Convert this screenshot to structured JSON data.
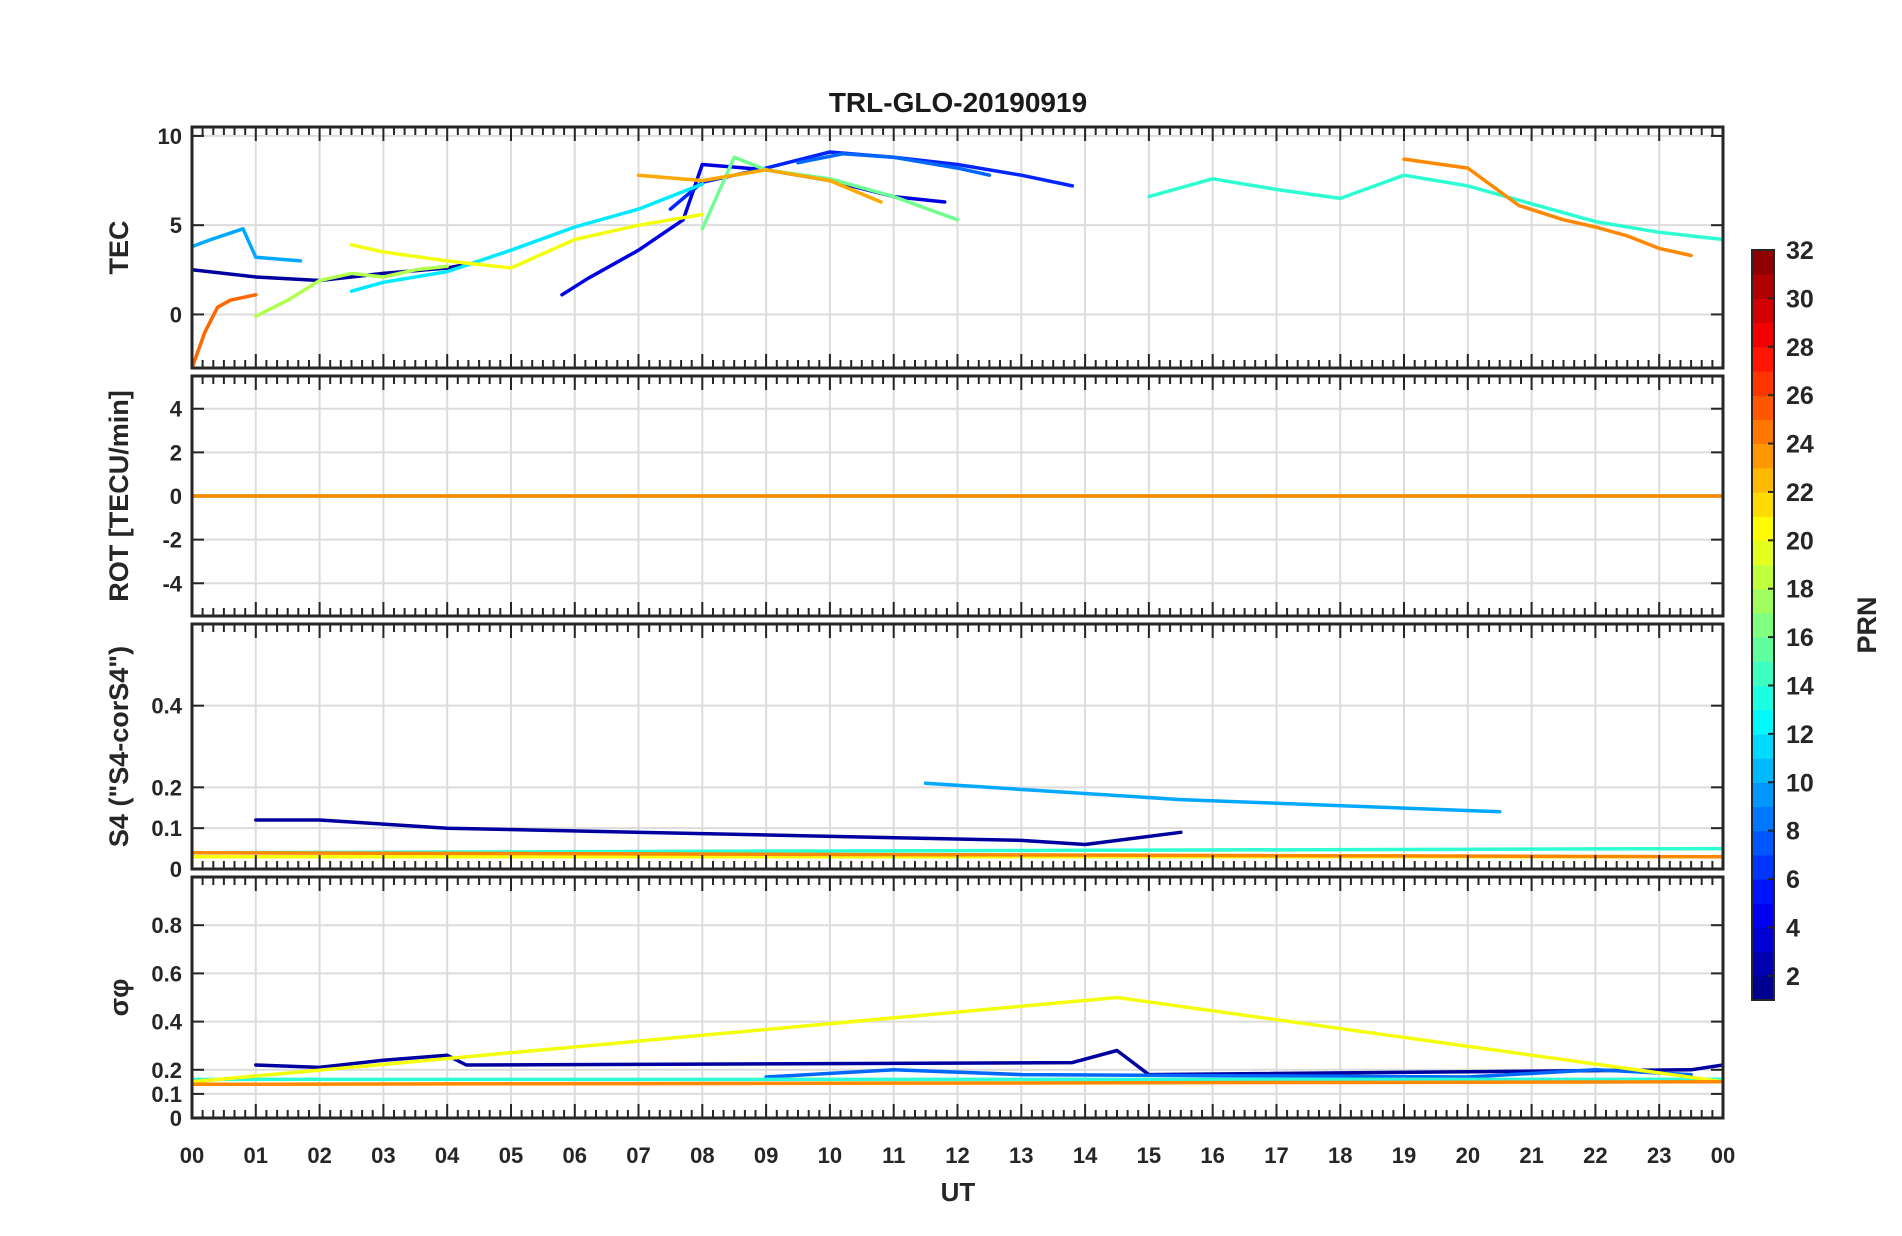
{
  "chart_data": {
    "type": "line",
    "title": "TRL-GLO-20190919",
    "xlabel": "UT",
    "x_ticks": [
      "00",
      "01",
      "02",
      "03",
      "04",
      "05",
      "06",
      "07",
      "08",
      "09",
      "10",
      "11",
      "12",
      "13",
      "14",
      "15",
      "16",
      "17",
      "18",
      "19",
      "20",
      "21",
      "22",
      "23",
      "00"
    ],
    "xlim": [
      0,
      24
    ],
    "grid": true,
    "panels": [
      {
        "ylabel": "TEC",
        "ylim": [
          -3,
          10.5
        ],
        "yticks": [
          0,
          5,
          10
        ],
        "ytick_labels": [
          "0",
          "5",
          "10"
        ],
        "series": [
          {
            "prn": 2,
            "x": [
              0.0,
              1.0,
              2.0,
              3.0,
              4.0,
              4.3
            ],
            "y": [
              2.5,
              2.1,
              1.9,
              2.3,
              2.6,
              2.8
            ]
          },
          {
            "prn": 4,
            "x": [
              5.8,
              6.2,
              7.0,
              7.7,
              8.0,
              9.0,
              10.0,
              11.0,
              11.8
            ],
            "y": [
              1.1,
              2.0,
              3.6,
              5.3,
              8.4,
              8.1,
              7.5,
              6.6,
              6.3
            ]
          },
          {
            "prn": 6,
            "x": [
              7.5,
              8.0,
              9.0,
              10.0,
              11.0,
              12.0,
              13.0,
              13.8
            ],
            "y": [
              5.9,
              7.4,
              8.2,
              9.1,
              8.8,
              8.4,
              7.8,
              7.2
            ]
          },
          {
            "prn": 8,
            "x": [
              9.5,
              10.2,
              11.0,
              12.0,
              12.5
            ],
            "y": [
              8.5,
              9.0,
              8.8,
              8.2,
              7.8
            ]
          },
          {
            "prn": 10,
            "x": [
              0.0,
              0.3,
              0.8,
              1.0,
              1.7
            ],
            "y": [
              3.8,
              4.2,
              4.8,
              3.2,
              3.0
            ]
          },
          {
            "prn": 12,
            "x": [
              2.5,
              3.0,
              4.0,
              5.0,
              6.0,
              7.0,
              8.0
            ],
            "y": [
              1.3,
              1.8,
              2.4,
              3.6,
              4.9,
              5.9,
              7.3
            ]
          },
          {
            "prn": 14,
            "x": [
              15.0,
              16.0,
              17.0,
              18.0,
              19.0,
              20.0,
              21.0,
              22.0,
              23.0,
              24.0
            ],
            "y": [
              6.6,
              7.6,
              7.0,
              6.5,
              7.8,
              7.2,
              6.2,
              5.2,
              4.6,
              4.2
            ]
          },
          {
            "prn": 16,
            "x": [
              8.0,
              8.5,
              9.0,
              10.0,
              11.0,
              12.0
            ],
            "y": [
              4.8,
              8.8,
              8.1,
              7.6,
              6.6,
              5.3
            ]
          },
          {
            "prn": 18,
            "x": [
              1.0,
              1.5,
              2.0,
              2.5,
              3.0,
              3.5,
              4.0
            ],
            "y": [
              -0.1,
              0.8,
              1.9,
              2.3,
              2.1,
              2.5,
              2.7
            ]
          },
          {
            "prn": 20,
            "x": [
              2.5,
              3.0,
              4.0,
              5.0,
              6.0,
              7.0,
              8.0
            ],
            "y": [
              3.9,
              3.5,
              3.0,
              2.6,
              4.2,
              5.0,
              5.6
            ]
          },
          {
            "prn": 23,
            "x": [
              7.0,
              8.0,
              9.0,
              10.0,
              10.8
            ],
            "y": [
              7.8,
              7.5,
              8.1,
              7.5,
              6.3
            ]
          },
          {
            "prn": 24,
            "x": [
              19.0,
              20.0,
              20.8,
              21.5,
              22.0,
              22.5,
              23.0,
              23.5
            ],
            "y": [
              8.7,
              8.2,
              6.1,
              5.3,
              4.9,
              4.4,
              3.7,
              3.3
            ]
          },
          {
            "prn": 25,
            "x": [
              0.0,
              0.2,
              0.4,
              0.6,
              1.0
            ],
            "y": [
              -3.0,
              -1.0,
              0.4,
              0.8,
              1.1
            ]
          }
        ]
      },
      {
        "ylabel": "ROT [TECU/min]",
        "ylim": [
          -5.5,
          5.5
        ],
        "yticks": [
          -4,
          -2,
          0,
          2,
          4
        ],
        "ytick_labels": [
          "-4",
          "-2",
          "0",
          "2",
          "4"
        ],
        "series": [
          {
            "prn": 4,
            "x": [
              0,
              24
            ],
            "y": [
              0,
              0
            ]
          },
          {
            "prn": 14,
            "x": [
              0,
              24
            ],
            "y": [
              0,
              0
            ]
          },
          {
            "prn": 20,
            "x": [
              0,
              24
            ],
            "y": [
              0,
              0
            ]
          },
          {
            "prn": 24,
            "x": [
              0,
              24
            ],
            "y": [
              0,
              0
            ]
          }
        ]
      },
      {
        "ylabel": "S4 (\"S4-corS4\")",
        "ylim": [
          0,
          0.6
        ],
        "yticks": [
          0,
          0.1,
          0.2,
          0.4
        ],
        "ytick_labels": [
          "0",
          "0.1",
          "0.2",
          "0.4"
        ],
        "series": [
          {
            "prn": 2,
            "x": [
              1.0,
              2.0,
              3.0,
              4.0,
              13.0,
              14.0,
              15.5
            ],
            "y": [
              0.12,
              0.12,
              0.11,
              0.1,
              0.07,
              0.06,
              0.09
            ]
          },
          {
            "prn": 10,
            "x": [
              11.5,
              15.5,
              20.5
            ],
            "y": [
              0.21,
              0.17,
              0.14
            ]
          },
          {
            "prn": 14,
            "x": [
              0,
              24
            ],
            "y": [
              0.04,
              0.05
            ]
          },
          {
            "prn": 20,
            "x": [
              0,
              24
            ],
            "y": [
              0.03,
              0.03
            ]
          },
          {
            "prn": 24,
            "x": [
              0,
              24
            ],
            "y": [
              0.04,
              0.03
            ]
          }
        ]
      },
      {
        "ylabel": "σφ",
        "ylim": [
          0,
          1
        ],
        "yticks": [
          0,
          0.1,
          0.2,
          0.4,
          0.6,
          0.8
        ],
        "ytick_labels": [
          "0",
          "0.1",
          "0.2",
          "0.4",
          "0.6",
          "0.8"
        ],
        "series": [
          {
            "prn": 2,
            "x": [
              1.0,
              2.0,
              3.0,
              4.0,
              4.3,
              13.8,
              14.5,
              15.0,
              23.5,
              24.0
            ],
            "y": [
              0.22,
              0.21,
              0.24,
              0.26,
              0.22,
              0.23,
              0.28,
              0.18,
              0.2,
              0.22
            ]
          },
          {
            "prn": 8,
            "x": [
              9.0,
              11.0,
              13.0,
              20.0,
              22.0,
              23.5
            ],
            "y": [
              0.17,
              0.2,
              0.18,
              0.17,
              0.2,
              0.18
            ]
          },
          {
            "prn": 14,
            "x": [
              0,
              24
            ],
            "y": [
              0.16,
              0.16
            ]
          },
          {
            "prn": 20,
            "x": [
              0,
              14.5,
              24
            ],
            "y": [
              0.15,
              0.5,
              0.15
            ]
          },
          {
            "prn": 24,
            "x": [
              0,
              24
            ],
            "y": [
              0.14,
              0.15
            ]
          }
        ]
      }
    ],
    "colorbar": {
      "label": "PRN",
      "range": [
        1,
        32
      ],
      "ticks": [
        "2",
        "4",
        "6",
        "8",
        "10",
        "12",
        "14",
        "16",
        "18",
        "20",
        "22",
        "24",
        "26",
        "28",
        "30",
        "32"
      ],
      "colormap": "jet",
      "placement": "right"
    }
  }
}
